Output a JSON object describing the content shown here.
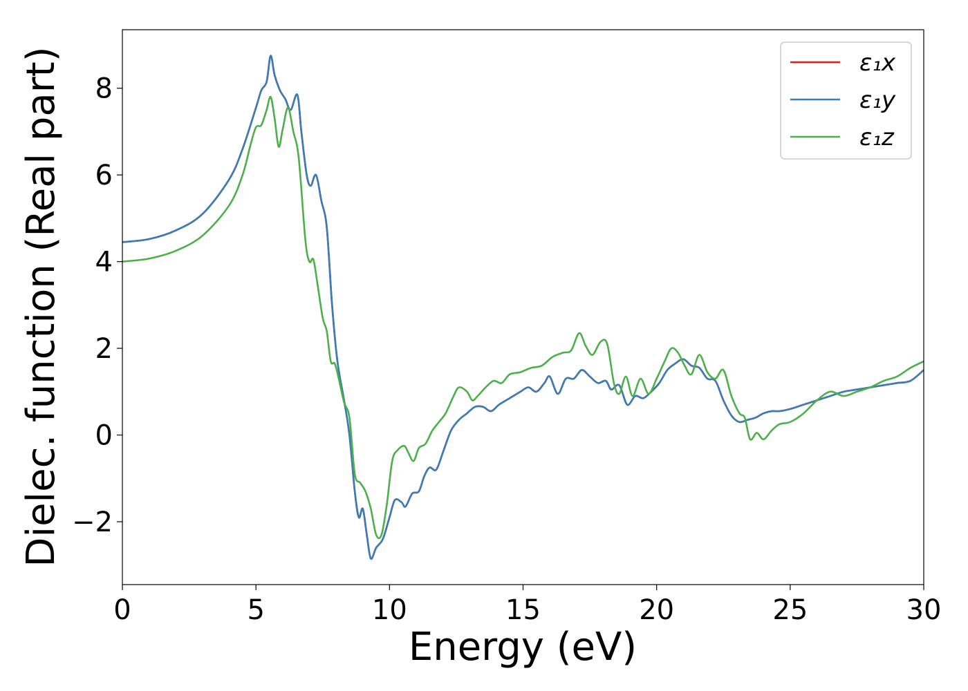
{
  "chart_data": {
    "type": "line",
    "title": "",
    "xlabel": "Energy (eV)",
    "ylabel": "Dielec. function (Real part)",
    "xlim": [
      0,
      30
    ],
    "ylim": [
      -3.45,
      9.35
    ],
    "xticks": [
      0,
      5,
      10,
      15,
      20,
      25,
      30
    ],
    "xtick_labels": [
      "0",
      "5",
      "10",
      "15",
      "20",
      "25",
      "30"
    ],
    "yticks": [
      -2,
      0,
      2,
      4,
      6,
      8
    ],
    "ytick_labels": [
      "−2",
      "0",
      "2",
      "4",
      "6",
      "8"
    ],
    "grid": false,
    "legend_position": "top-right",
    "series": [
      {
        "name": "ε₁x",
        "color": "#e41a1c",
        "points": [
          [
            0,
            4.45
          ],
          [
            1,
            4.52
          ],
          [
            2,
            4.72
          ],
          [
            3,
            5.1
          ],
          [
            4,
            5.9
          ],
          [
            4.5,
            6.6
          ],
          [
            5,
            7.55
          ],
          [
            5.2,
            7.95
          ],
          [
            5.4,
            8.15
          ],
          [
            5.55,
            8.75
          ],
          [
            5.7,
            8.3
          ],
          [
            5.9,
            7.95
          ],
          [
            6.1,
            7.75
          ],
          [
            6.3,
            7.5
          ],
          [
            6.55,
            7.85
          ],
          [
            6.7,
            7.0
          ],
          [
            6.9,
            6.0
          ],
          [
            7.05,
            5.75
          ],
          [
            7.25,
            6.0
          ],
          [
            7.45,
            5.4
          ],
          [
            7.65,
            4.8
          ],
          [
            7.85,
            3.0
          ],
          [
            8.05,
            1.7
          ],
          [
            8.3,
            0.8
          ],
          [
            8.5,
            0.0
          ],
          [
            8.7,
            -1.3
          ],
          [
            8.85,
            -1.9
          ],
          [
            9.0,
            -1.7
          ],
          [
            9.15,
            -2.3
          ],
          [
            9.3,
            -2.85
          ],
          [
            9.5,
            -2.6
          ],
          [
            9.75,
            -2.4
          ],
          [
            10.0,
            -1.9
          ],
          [
            10.2,
            -1.5
          ],
          [
            10.45,
            -1.55
          ],
          [
            10.6,
            -1.65
          ],
          [
            10.85,
            -1.35
          ],
          [
            11.1,
            -1.3
          ],
          [
            11.3,
            -0.95
          ],
          [
            11.5,
            -0.75
          ],
          [
            11.75,
            -0.8
          ],
          [
            12.0,
            -0.4
          ],
          [
            12.3,
            0.1
          ],
          [
            12.6,
            0.35
          ],
          [
            12.9,
            0.5
          ],
          [
            13.2,
            0.65
          ],
          [
            13.5,
            0.65
          ],
          [
            13.8,
            0.55
          ],
          [
            14.1,
            0.7
          ],
          [
            14.5,
            0.85
          ],
          [
            14.9,
            1.0
          ],
          [
            15.2,
            1.1
          ],
          [
            15.5,
            1.0
          ],
          [
            15.8,
            1.2
          ],
          [
            16.0,
            1.35
          ],
          [
            16.3,
            0.95
          ],
          [
            16.6,
            1.3
          ],
          [
            16.9,
            1.3
          ],
          [
            17.2,
            1.5
          ],
          [
            17.5,
            1.35
          ],
          [
            17.8,
            1.2
          ],
          [
            18.1,
            1.25
          ],
          [
            18.3,
            1.05
          ],
          [
            18.6,
            1.15
          ],
          [
            18.9,
            0.7
          ],
          [
            19.2,
            0.9
          ],
          [
            19.5,
            0.85
          ],
          [
            19.8,
            1.0
          ],
          [
            20.1,
            1.2
          ],
          [
            20.4,
            1.5
          ],
          [
            20.7,
            1.65
          ],
          [
            21.0,
            1.75
          ],
          [
            21.3,
            1.6
          ],
          [
            21.6,
            1.55
          ],
          [
            21.9,
            1.3
          ],
          [
            22.2,
            1.25
          ],
          [
            22.5,
            0.8
          ],
          [
            22.8,
            0.45
          ],
          [
            23.1,
            0.3
          ],
          [
            23.4,
            0.35
          ],
          [
            23.7,
            0.4
          ],
          [
            24.0,
            0.5
          ],
          [
            24.3,
            0.55
          ],
          [
            24.6,
            0.55
          ],
          [
            25.0,
            0.6
          ],
          [
            25.5,
            0.7
          ],
          [
            26.0,
            0.8
          ],
          [
            26.5,
            0.9
          ],
          [
            27.0,
            1.0
          ],
          [
            27.5,
            1.05
          ],
          [
            28.0,
            1.1
          ],
          [
            28.5,
            1.15
          ],
          [
            29.0,
            1.2
          ],
          [
            29.5,
            1.25
          ],
          [
            30.0,
            1.5
          ]
        ]
      },
      {
        "name": "ε₁y",
        "color": "#377eb8",
        "points": [
          [
            0,
            4.45
          ],
          [
            1,
            4.52
          ],
          [
            2,
            4.72
          ],
          [
            3,
            5.1
          ],
          [
            4,
            5.9
          ],
          [
            4.5,
            6.6
          ],
          [
            5,
            7.55
          ],
          [
            5.2,
            7.95
          ],
          [
            5.4,
            8.15
          ],
          [
            5.55,
            8.75
          ],
          [
            5.7,
            8.3
          ],
          [
            5.9,
            7.95
          ],
          [
            6.1,
            7.75
          ],
          [
            6.3,
            7.5
          ],
          [
            6.55,
            7.85
          ],
          [
            6.7,
            7.0
          ],
          [
            6.9,
            6.0
          ],
          [
            7.05,
            5.75
          ],
          [
            7.25,
            6.0
          ],
          [
            7.45,
            5.4
          ],
          [
            7.65,
            4.8
          ],
          [
            7.85,
            3.0
          ],
          [
            8.05,
            1.7
          ],
          [
            8.3,
            0.8
          ],
          [
            8.5,
            0.0
          ],
          [
            8.7,
            -1.3
          ],
          [
            8.85,
            -1.9
          ],
          [
            9.0,
            -1.7
          ],
          [
            9.15,
            -2.3
          ],
          [
            9.3,
            -2.85
          ],
          [
            9.5,
            -2.6
          ],
          [
            9.75,
            -2.4
          ],
          [
            10.0,
            -1.9
          ],
          [
            10.2,
            -1.5
          ],
          [
            10.45,
            -1.55
          ],
          [
            10.6,
            -1.65
          ],
          [
            10.85,
            -1.35
          ],
          [
            11.1,
            -1.3
          ],
          [
            11.3,
            -0.95
          ],
          [
            11.5,
            -0.75
          ],
          [
            11.75,
            -0.8
          ],
          [
            12.0,
            -0.4
          ],
          [
            12.3,
            0.1
          ],
          [
            12.6,
            0.35
          ],
          [
            12.9,
            0.5
          ],
          [
            13.2,
            0.65
          ],
          [
            13.5,
            0.65
          ],
          [
            13.8,
            0.55
          ],
          [
            14.1,
            0.7
          ],
          [
            14.5,
            0.85
          ],
          [
            14.9,
            1.0
          ],
          [
            15.2,
            1.1
          ],
          [
            15.5,
            1.0
          ],
          [
            15.8,
            1.2
          ],
          [
            16.0,
            1.35
          ],
          [
            16.3,
            0.95
          ],
          [
            16.6,
            1.3
          ],
          [
            16.9,
            1.3
          ],
          [
            17.2,
            1.5
          ],
          [
            17.5,
            1.35
          ],
          [
            17.8,
            1.2
          ],
          [
            18.1,
            1.25
          ],
          [
            18.3,
            1.05
          ],
          [
            18.6,
            1.15
          ],
          [
            18.9,
            0.7
          ],
          [
            19.2,
            0.9
          ],
          [
            19.5,
            0.85
          ],
          [
            19.8,
            1.0
          ],
          [
            20.1,
            1.2
          ],
          [
            20.4,
            1.5
          ],
          [
            20.7,
            1.65
          ],
          [
            21.0,
            1.75
          ],
          [
            21.3,
            1.6
          ],
          [
            21.6,
            1.55
          ],
          [
            21.9,
            1.3
          ],
          [
            22.2,
            1.25
          ],
          [
            22.5,
            0.8
          ],
          [
            22.8,
            0.45
          ],
          [
            23.1,
            0.3
          ],
          [
            23.4,
            0.35
          ],
          [
            23.7,
            0.4
          ],
          [
            24.0,
            0.5
          ],
          [
            24.3,
            0.55
          ],
          [
            24.6,
            0.55
          ],
          [
            25.0,
            0.6
          ],
          [
            25.5,
            0.7
          ],
          [
            26.0,
            0.8
          ],
          [
            26.5,
            0.9
          ],
          [
            27.0,
            1.0
          ],
          [
            27.5,
            1.05
          ],
          [
            28.0,
            1.1
          ],
          [
            28.5,
            1.15
          ],
          [
            29.0,
            1.2
          ],
          [
            29.5,
            1.25
          ],
          [
            30.0,
            1.5
          ]
        ]
      },
      {
        "name": "ε₁z",
        "color": "#4daf4a",
        "points": [
          [
            0,
            4.0
          ],
          [
            1,
            4.07
          ],
          [
            2,
            4.25
          ],
          [
            3,
            4.6
          ],
          [
            4,
            5.3
          ],
          [
            4.5,
            6.0
          ],
          [
            4.8,
            6.7
          ],
          [
            5.0,
            7.1
          ],
          [
            5.2,
            7.15
          ],
          [
            5.4,
            7.5
          ],
          [
            5.55,
            7.8
          ],
          [
            5.7,
            7.3
          ],
          [
            5.85,
            6.65
          ],
          [
            6.0,
            7.05
          ],
          [
            6.2,
            7.55
          ],
          [
            6.4,
            7.0
          ],
          [
            6.6,
            6.4
          ],
          [
            6.85,
            4.5
          ],
          [
            7.0,
            4.0
          ],
          [
            7.15,
            4.05
          ],
          [
            7.3,
            3.5
          ],
          [
            7.5,
            2.7
          ],
          [
            7.65,
            2.4
          ],
          [
            7.8,
            1.7
          ],
          [
            7.95,
            1.65
          ],
          [
            8.1,
            1.3
          ],
          [
            8.3,
            0.75
          ],
          [
            8.5,
            0.4
          ],
          [
            8.7,
            -0.9
          ],
          [
            8.9,
            -1.1
          ],
          [
            9.1,
            -1.3
          ],
          [
            9.3,
            -1.7
          ],
          [
            9.5,
            -2.3
          ],
          [
            9.7,
            -2.3
          ],
          [
            9.9,
            -1.6
          ],
          [
            10.1,
            -0.6
          ],
          [
            10.3,
            -0.35
          ],
          [
            10.55,
            -0.25
          ],
          [
            10.7,
            -0.4
          ],
          [
            10.9,
            -0.6
          ],
          [
            11.1,
            -0.3
          ],
          [
            11.35,
            -0.2
          ],
          [
            11.6,
            0.1
          ],
          [
            11.85,
            0.3
          ],
          [
            12.1,
            0.5
          ],
          [
            12.4,
            0.9
          ],
          [
            12.6,
            1.1
          ],
          [
            12.9,
            1.0
          ],
          [
            13.1,
            0.8
          ],
          [
            13.3,
            0.9
          ],
          [
            13.6,
            1.1
          ],
          [
            13.9,
            1.25
          ],
          [
            14.2,
            1.2
          ],
          [
            14.5,
            1.4
          ],
          [
            14.9,
            1.45
          ],
          [
            15.3,
            1.55
          ],
          [
            15.7,
            1.6
          ],
          [
            16.1,
            1.8
          ],
          [
            16.5,
            1.9
          ],
          [
            16.8,
            1.95
          ],
          [
            17.1,
            2.35
          ],
          [
            17.35,
            2.05
          ],
          [
            17.6,
            1.85
          ],
          [
            17.9,
            2.15
          ],
          [
            18.15,
            2.1
          ],
          [
            18.4,
            1.2
          ],
          [
            18.6,
            0.95
          ],
          [
            18.85,
            1.35
          ],
          [
            19.1,
            0.9
          ],
          [
            19.4,
            1.3
          ],
          [
            19.7,
            0.95
          ],
          [
            20.0,
            1.3
          ],
          [
            20.3,
            1.7
          ],
          [
            20.55,
            2.0
          ],
          [
            20.8,
            1.9
          ],
          [
            21.05,
            1.6
          ],
          [
            21.3,
            1.4
          ],
          [
            21.6,
            1.85
          ],
          [
            21.9,
            1.45
          ],
          [
            22.2,
            1.3
          ],
          [
            22.5,
            1.5
          ],
          [
            22.8,
            0.9
          ],
          [
            23.1,
            0.5
          ],
          [
            23.3,
            0.4
          ],
          [
            23.5,
            -0.1
          ],
          [
            23.75,
            0.05
          ],
          [
            24.0,
            -0.1
          ],
          [
            24.3,
            0.1
          ],
          [
            24.6,
            0.25
          ],
          [
            25.0,
            0.3
          ],
          [
            25.5,
            0.5
          ],
          [
            26.0,
            0.8
          ],
          [
            26.5,
            1.0
          ],
          [
            27.0,
            0.9
          ],
          [
            27.5,
            1.0
          ],
          [
            28.0,
            1.1
          ],
          [
            28.5,
            1.25
          ],
          [
            29.0,
            1.35
          ],
          [
            29.5,
            1.55
          ],
          [
            30.0,
            1.7
          ]
        ]
      }
    ]
  }
}
